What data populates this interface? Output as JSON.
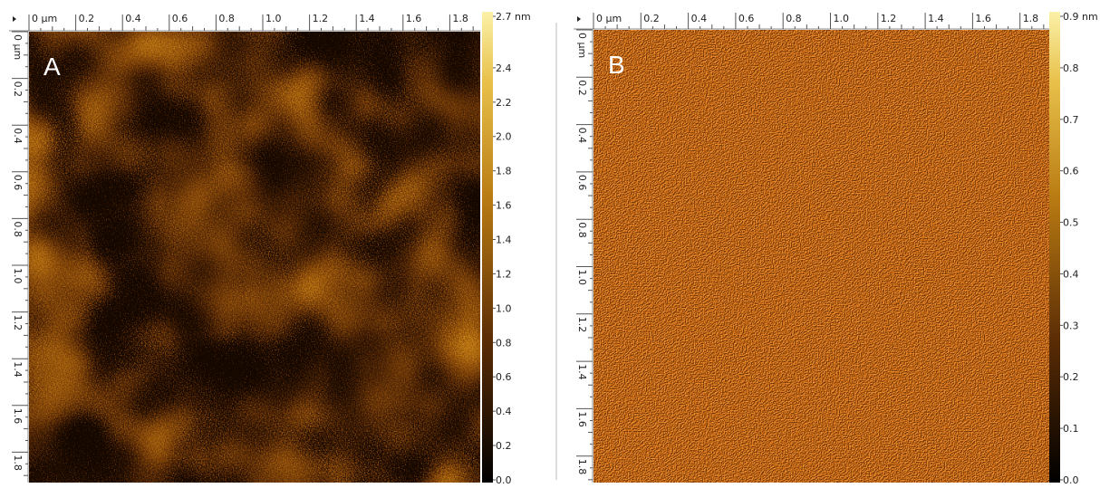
{
  "panels": [
    {
      "label": "A",
      "x_ruler": [
        "0 µm",
        "0.2",
        "0.4",
        "0.6",
        "0.8",
        "1.0",
        "1.2",
        "1.4",
        "1.6",
        "1.8"
      ],
      "y_ruler": [
        "0 µm",
        "0.2",
        "0.4",
        "0.6",
        "0.8",
        "1.0",
        "1.2",
        "1.4",
        "1.6",
        "1.8"
      ],
      "colorbar": [
        "2.7 nm",
        "2.4",
        "2.2",
        "2.0",
        "1.8",
        "1.6",
        "1.4",
        "1.2",
        "1.0",
        "0.8",
        "0.6",
        "0.4",
        "0.2",
        "0.0"
      ]
    },
    {
      "label": "B",
      "x_ruler": [
        "0 µm",
        "0.2",
        "0.4",
        "0.6",
        "0.8",
        "1.0",
        "1.2",
        "1.4",
        "1.6",
        "1.8"
      ],
      "y_ruler": [
        "0 µm",
        "0.2",
        "0.4",
        "0.6",
        "0.8",
        "1.0",
        "1.2",
        "1.4",
        "1.6",
        "1.8"
      ],
      "colorbar": [
        "0.9 nm",
        "0.8",
        "0.7",
        "0.6",
        "0.5",
        "0.4",
        "0.3",
        "0.2",
        "0.1",
        "0.0"
      ]
    }
  ]
}
